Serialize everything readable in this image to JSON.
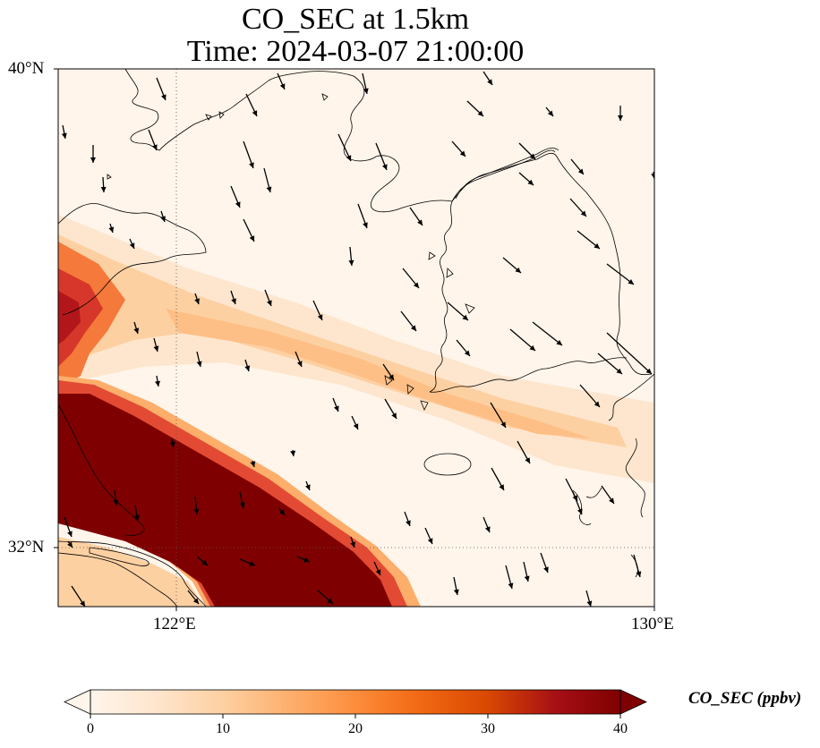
{
  "title": {
    "line1": "CO_SEC at 1.5km",
    "line2": "Time: 2024-03-07 21:00:00"
  },
  "map": {
    "lon_range": [
      120.4,
      130
    ],
    "lat_range": [
      31.2,
      40
    ],
    "lat_ticks": [
      {
        "value": 40,
        "label": "40°N"
      },
      {
        "value": 32,
        "label": "32°N"
      }
    ],
    "lon_ticks": [
      {
        "value": 122,
        "label": "122°E"
      },
      {
        "value": 130,
        "label": "130°E"
      }
    ],
    "gridlines": "dotted",
    "wind_direction": "north-westerly"
  },
  "colorbar": {
    "label": "CO_SEC (ppbv)",
    "range": [
      0,
      40
    ],
    "ticks": [
      0,
      10,
      20,
      30,
      40
    ],
    "extend": "both",
    "colormap": [
      "#fff5eb",
      "#fee6ce",
      "#fdd0a2",
      "#fdae6b",
      "#fd8d3c",
      "#f16913",
      "#d94801",
      "#a50f15",
      "#7f0000"
    ]
  }
}
